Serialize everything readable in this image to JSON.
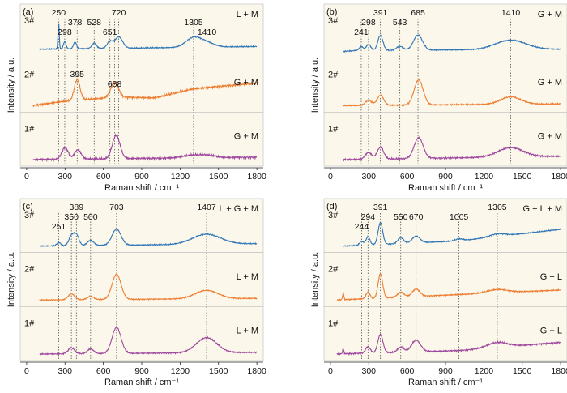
{
  "figure": {
    "x_axis_label": "Raman shift / cm⁻¹",
    "y_axis_label": "Intensity / a.u.",
    "x_ticks": [
      0,
      300,
      600,
      900,
      1200,
      1500,
      1800
    ],
    "xlim": [
      -50,
      1850
    ]
  },
  "colors": {
    "sample_3": "#2e75b6",
    "sample_2": "#ed7d31",
    "sample_1": "#9e479e",
    "strip_background": "#fbf7ea",
    "guide_line": "#555555"
  },
  "chart_data": [
    {
      "type": "line",
      "panel_label": "(a)",
      "xlabel": "Raman shift / cm⁻¹",
      "ylabel": "Intensity / a.u.",
      "xlim": [
        -50,
        1850
      ],
      "grid": false,
      "guide_lines": [
        250,
        298,
        378,
        395,
        528,
        651,
        688,
        720,
        1305,
        1410
      ],
      "series": [
        {
          "name": "3#",
          "phase": "L + M",
          "color": "#2e75b6",
          "x_range": [
            100,
            1800
          ],
          "baseline": [
            [
              100,
              0.12
            ],
            [
              1800,
              0.2
            ]
          ],
          "peaks": [
            [
              250,
              0.78,
              5
            ],
            [
              298,
              0.22,
              10
            ],
            [
              378,
              0.2,
              12
            ],
            [
              528,
              0.16,
              18
            ],
            [
              651,
              0.2,
              22
            ],
            [
              720,
              0.34,
              30
            ],
            [
              1305,
              0.28,
              60
            ],
            [
              1410,
              0.12,
              60
            ]
          ],
          "noise": 0.02,
          "peak_labels": [
            {
              "text": "250",
              "x": 250,
              "level": 1
            },
            {
              "text": "298",
              "x": 298,
              "level": 3
            },
            {
              "text": "378",
              "x": 378,
              "level": 2
            },
            {
              "text": "528",
              "x": 528,
              "level": 2
            },
            {
              "text": "651",
              "x": 651,
              "level": 3
            },
            {
              "text": "720",
              "x": 720,
              "level": 1
            },
            {
              "text": "1305",
              "x": 1305,
              "level": 2
            },
            {
              "text": "1410",
              "x": 1410,
              "level": 3
            }
          ]
        },
        {
          "name": "2#",
          "phase": "G + M",
          "color": "#ed7d31",
          "x_range": [
            50,
            1800
          ],
          "baseline": [
            [
              50,
              0.05
            ],
            [
              300,
              0.18
            ],
            [
              700,
              0.3
            ],
            [
              1000,
              0.28
            ],
            [
              1300,
              0.55
            ],
            [
              1800,
              0.72
            ]
          ],
          "peaks": [
            [
              395,
              0.62,
              22
            ],
            [
              688,
              0.45,
              30
            ]
          ],
          "noise": 0.04,
          "peak_labels": [
            {
              "text": "395",
              "x": 395,
              "level": 1
            },
            {
              "text": "688",
              "x": 688,
              "level": 2
            }
          ]
        },
        {
          "name": "1#",
          "phase": "G + M",
          "color": "#9e479e",
          "x_range": [
            50,
            1800
          ],
          "baseline": [
            [
              50,
              0.05
            ],
            [
              1800,
              0.12
            ]
          ],
          "peaks": [
            [
              300,
              0.35,
              25
            ],
            [
              400,
              0.28,
              25
            ],
            [
              700,
              0.7,
              30
            ],
            [
              1300,
              0.08,
              80
            ],
            [
              1420,
              0.06,
              60
            ]
          ],
          "noise": 0.04,
          "peak_labels": []
        }
      ]
    },
    {
      "type": "line",
      "panel_label": "(b)",
      "xlabel": "Raman shift / cm⁻¹",
      "ylabel": "Intensity / a.u.",
      "xlim": [
        -50,
        1850
      ],
      "grid": false,
      "guide_lines": [
        241,
        298,
        391,
        543,
        685,
        1410
      ],
      "series": [
        {
          "name": "3#",
          "phase": "G + M",
          "color": "#2e75b6",
          "x_range": [
            100,
            1800
          ],
          "baseline": [
            [
              100,
              0.05
            ],
            [
              200,
              0.08
            ],
            [
              1800,
              0.12
            ]
          ],
          "peaks": [
            [
              241,
              0.12,
              15
            ],
            [
              298,
              0.18,
              18
            ],
            [
              391,
              0.45,
              20
            ],
            [
              543,
              0.12,
              25
            ],
            [
              685,
              0.45,
              35
            ],
            [
              1410,
              0.28,
              120
            ]
          ],
          "noise": 0.02,
          "peak_labels": [
            {
              "text": "241",
              "x": 241,
              "level": 3
            },
            {
              "text": "298",
              "x": 298,
              "level": 2
            },
            {
              "text": "391",
              "x": 391,
              "level": 1
            },
            {
              "text": "543",
              "x": 543,
              "level": 2
            },
            {
              "text": "685",
              "x": 685,
              "level": 1
            },
            {
              "text": "1410",
              "x": 1410,
              "level": 1
            }
          ]
        },
        {
          "name": "2#",
          "phase": "G + M",
          "color": "#ed7d31",
          "x_range": [
            100,
            1800
          ],
          "baseline": [
            [
              100,
              0.05
            ],
            [
              1800,
              0.1
            ]
          ],
          "peaks": [
            [
              298,
              0.15,
              25
            ],
            [
              391,
              0.3,
              25
            ],
            [
              690,
              0.75,
              35
            ],
            [
              1410,
              0.22,
              80
            ]
          ],
          "noise": 0.025,
          "peak_labels": []
        },
        {
          "name": "1#",
          "phase": "G + M",
          "color": "#9e479e",
          "x_range": [
            100,
            1800
          ],
          "baseline": [
            [
              100,
              0.05
            ],
            [
              1800,
              0.15
            ]
          ],
          "peaks": [
            [
              298,
              0.2,
              25
            ],
            [
              391,
              0.35,
              25
            ],
            [
              690,
              0.62,
              35
            ],
            [
              1410,
              0.28,
              100
            ]
          ],
          "noise": 0.03,
          "peak_labels": []
        }
      ]
    },
    {
      "type": "line",
      "panel_label": "(c)",
      "xlabel": "Raman shift / cm⁻¹",
      "ylabel": "Intensity / a.u.",
      "xlim": [
        -50,
        1850
      ],
      "grid": false,
      "guide_lines": [
        251,
        350,
        389,
        500,
        703,
        1407
      ],
      "series": [
        {
          "name": "3#",
          "phase": "L + G + M",
          "color": "#2e75b6",
          "x_range": [
            100,
            1800
          ],
          "baseline": [
            [
              100,
              0.05
            ],
            [
              1800,
              0.12
            ]
          ],
          "peaks": [
            [
              251,
              0.1,
              15
            ],
            [
              350,
              0.28,
              20
            ],
            [
              389,
              0.32,
              20
            ],
            [
              500,
              0.15,
              25
            ],
            [
              703,
              0.48,
              35
            ],
            [
              1407,
              0.3,
              110
            ]
          ],
          "noise": 0.02,
          "peak_labels": [
            {
              "text": "251",
              "x": 251,
              "level": 3
            },
            {
              "text": "350",
              "x": 350,
              "level": 2
            },
            {
              "text": "389",
              "x": 389,
              "level": 1
            },
            {
              "text": "500",
              "x": 500,
              "level": 2
            },
            {
              "text": "703",
              "x": 703,
              "level": 1
            },
            {
              "text": "1407",
              "x": 1407,
              "level": 1
            }
          ]
        },
        {
          "name": "2#",
          "phase": "L + M",
          "color": "#ed7d31",
          "x_range": [
            100,
            1800
          ],
          "baseline": [
            [
              100,
              0.05
            ],
            [
              1800,
              0.1
            ]
          ],
          "peaks": [
            [
              350,
              0.18,
              25
            ],
            [
              500,
              0.1,
              25
            ],
            [
              703,
              0.75,
              35
            ],
            [
              1407,
              0.25,
              90
            ]
          ],
          "noise": 0.02,
          "peak_labels": []
        },
        {
          "name": "1#",
          "phase": "L + M",
          "color": "#9e479e",
          "x_range": [
            100,
            1800
          ],
          "baseline": [
            [
              100,
              0.05
            ],
            [
              1800,
              0.1
            ]
          ],
          "peaks": [
            [
              350,
              0.18,
              25
            ],
            [
              500,
              0.14,
              25
            ],
            [
              703,
              0.78,
              35
            ],
            [
              1407,
              0.45,
              80
            ]
          ],
          "noise": 0.025,
          "peak_labels": []
        }
      ]
    },
    {
      "type": "line",
      "panel_label": "(d)",
      "xlabel": "Raman shift / cm⁻¹",
      "ylabel": "Intensity / a.u.",
      "xlim": [
        -50,
        1850
      ],
      "grid": false,
      "guide_lines": [
        244,
        294,
        391,
        550,
        670,
        1005,
        1305
      ],
      "series": [
        {
          "name": "3#",
          "phase": "G + L + M",
          "color": "#2e75b6",
          "x_range": [
            100,
            1800
          ],
          "baseline": [
            [
              100,
              0.05
            ],
            [
              1000,
              0.2
            ],
            [
              1800,
              0.55
            ]
          ],
          "peaks": [
            [
              244,
              0.12,
              15
            ],
            [
              294,
              0.25,
              15
            ],
            [
              391,
              0.65,
              18
            ],
            [
              550,
              0.18,
              22
            ],
            [
              670,
              0.2,
              30
            ],
            [
              1005,
              0.06,
              30
            ],
            [
              1305,
              0.08,
              60
            ]
          ],
          "noise": 0.02,
          "peak_labels": [
            {
              "text": "244",
              "x": 244,
              "level": 3
            },
            {
              "text": "294",
              "x": 294,
              "level": 2
            },
            {
              "text": "391",
              "x": 391,
              "level": 1
            },
            {
              "text": "550",
              "x": 550,
              "level": 2
            },
            {
              "text": "670",
              "x": 670,
              "level": 2
            },
            {
              "text": "1005",
              "x": 1005,
              "level": 2
            },
            {
              "text": "1305",
              "x": 1305,
              "level": 1
            }
          ]
        },
        {
          "name": "2#",
          "phase": "G + L",
          "color": "#ed7d31",
          "x_range": [
            50,
            1800
          ],
          "baseline": [
            [
              50,
              0.05
            ],
            [
              1800,
              0.35
            ]
          ],
          "peaks": [
            [
              100,
              0.2,
              5
            ],
            [
              294,
              0.2,
              15
            ],
            [
              391,
              0.72,
              18
            ],
            [
              550,
              0.15,
              25
            ],
            [
              670,
              0.22,
              30
            ],
            [
              1305,
              0.1,
              80
            ]
          ],
          "noise": 0.025,
          "peak_labels": []
        },
        {
          "name": "1#",
          "phase": "G + L",
          "color": "#9e479e",
          "x_range": [
            50,
            1800
          ],
          "baseline": [
            [
              50,
              0.05
            ],
            [
              1000,
              0.15
            ],
            [
              1800,
              0.4
            ]
          ],
          "peaks": [
            [
              100,
              0.15,
              5
            ],
            [
              294,
              0.2,
              18
            ],
            [
              391,
              0.55,
              20
            ],
            [
              550,
              0.15,
              25
            ],
            [
              670,
              0.35,
              35
            ],
            [
              1305,
              0.15,
              80
            ]
          ],
          "noise": 0.03,
          "peak_labels": []
        }
      ]
    }
  ]
}
